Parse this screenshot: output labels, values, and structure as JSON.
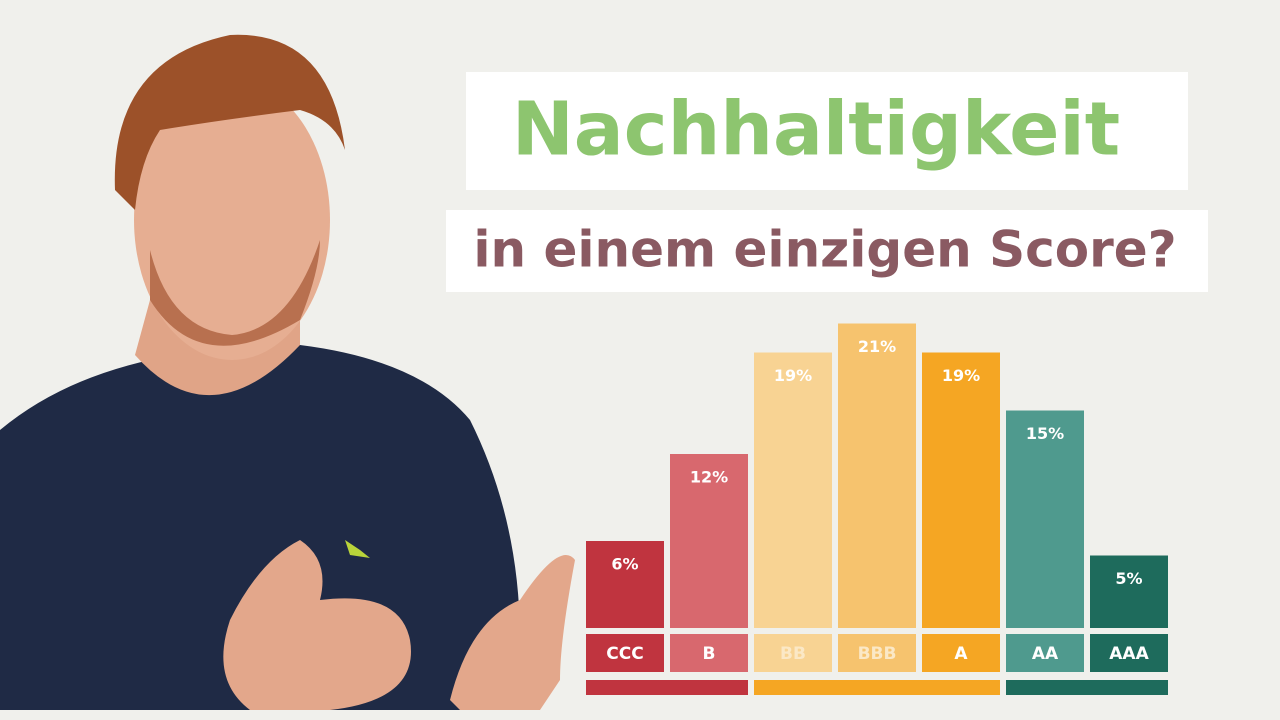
{
  "chart_data": {
    "type": "bar",
    "title": "Nachhaltigkeit",
    "subtitle": "in einem einzigen Score?",
    "categories": [
      "CCC",
      "B",
      "BB",
      "BBB",
      "A",
      "AA",
      "AAA"
    ],
    "values": [
      6,
      12,
      19,
      21,
      19,
      15,
      5
    ],
    "value_labels": [
      "6%",
      "12%",
      "19%",
      "21%",
      "19%",
      "15%",
      "5%"
    ],
    "colors": [
      "#c0343f",
      "#d8686e",
      "#f8d393",
      "#f6c36e",
      "#f5a623",
      "#4f9a8e",
      "#1e6b5c"
    ]
  }
}
